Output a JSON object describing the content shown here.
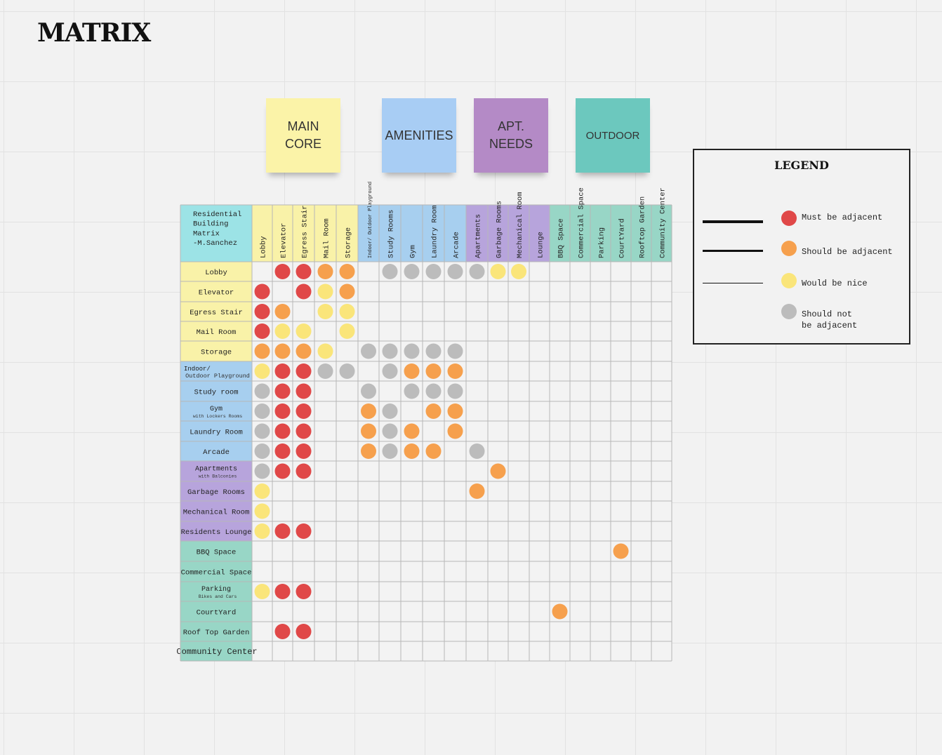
{
  "title": "MATRIX",
  "categories": [
    {
      "label": "MAIN\nCORE",
      "color": "#fbf3a8"
    },
    {
      "label": "AMENITIES",
      "color": "#a8cdf4"
    },
    {
      "label": "APT.\nNEEDS",
      "color": "#b48ac6"
    },
    {
      "label": "OUTDOOR",
      "color": "#6cc8be"
    }
  ],
  "matrix": {
    "corner_label": [
      "Residential",
      "Building",
      "Matrix",
      "-M.Sanchez"
    ],
    "group_colors": {
      "core": "#f9f2a8",
      "amenities": "#a7cfef",
      "apt": "#b7a4dc",
      "outdoor": "#98d6c6",
      "corner": "#9ce3e6"
    },
    "columns": [
      {
        "label": "Lobby",
        "group": "core"
      },
      {
        "label": "Elevator",
        "group": "core"
      },
      {
        "label": "Egress Stair",
        "group": "core"
      },
      {
        "label": "Mail Room",
        "group": "core"
      },
      {
        "label": "Storage",
        "group": "core"
      },
      {
        "label": "Indoor/ Outdoor Playground",
        "group": "amenities",
        "tiny": true
      },
      {
        "label": "Study Rooms",
        "group": "amenities"
      },
      {
        "label": "Gym",
        "group": "amenities"
      },
      {
        "label": "Laundry Room",
        "group": "amenities"
      },
      {
        "label": "Arcade",
        "group": "amenities"
      },
      {
        "label": "Apartments",
        "group": "apt"
      },
      {
        "label": "Garbage Rooms",
        "group": "apt"
      },
      {
        "label": "Mechanical Room",
        "group": "apt"
      },
      {
        "label": "Lounge",
        "group": "apt"
      },
      {
        "label": "BBQ Space",
        "group": "outdoor"
      },
      {
        "label": "Commercial Space",
        "group": "outdoor"
      },
      {
        "label": "Parking",
        "group": "outdoor"
      },
      {
        "label": "CourtYard",
        "group": "outdoor"
      },
      {
        "label": "Rooftop Garden",
        "group": "outdoor"
      },
      {
        "label": "Community Center",
        "group": "outdoor"
      }
    ],
    "rows": [
      {
        "label": "Lobby",
        "group": "core",
        "cells": [
          "",
          "R",
          "R",
          "O",
          "O",
          "",
          "G",
          "G",
          "G",
          "G",
          "G",
          "Y",
          "Y",
          "",
          "",
          "",
          "",
          "",
          "",
          ""
        ]
      },
      {
        "label": "Elevator",
        "group": "core",
        "cells": [
          "R",
          "",
          "R",
          "Y",
          "O",
          "",
          "",
          "",
          "",
          "",
          "",
          "",
          "",
          "",
          "",
          "",
          "",
          "",
          "",
          ""
        ]
      },
      {
        "label": "Egress Stair",
        "group": "core",
        "cells": [
          "R",
          "O",
          "",
          "Y",
          "Y",
          "",
          "",
          "",
          "",
          "",
          "",
          "",
          "",
          "",
          "",
          "",
          "",
          "",
          "",
          ""
        ]
      },
      {
        "label": "Mail Room",
        "group": "core",
        "cells": [
          "R",
          "Y",
          "Y",
          "",
          "Y",
          "",
          "",
          "",
          "",
          "",
          "",
          "",
          "",
          "",
          "",
          "",
          "",
          "",
          "",
          ""
        ]
      },
      {
        "label": "Storage",
        "group": "core",
        "cells": [
          "O",
          "O",
          "O",
          "Y",
          "",
          "G",
          "G",
          "G",
          "G",
          "G",
          "",
          "",
          "",
          "",
          "",
          "",
          "",
          "",
          "",
          ""
        ]
      },
      {
        "label": "Indoor/",
        "sub": "Outdoor Playground",
        "group": "amenities",
        "cells": [
          "Y",
          "R",
          "R",
          "G",
          "G",
          "",
          "G",
          "O",
          "O",
          "O",
          "",
          "",
          "",
          "",
          "",
          "",
          "",
          "",
          "",
          ""
        ]
      },
      {
        "label": "Study room",
        "group": "amenities",
        "cells": [
          "G",
          "R",
          "R",
          "",
          "",
          "G",
          "",
          "G",
          "G",
          "G",
          "",
          "",
          "",
          "",
          "",
          "",
          "",
          "",
          "",
          ""
        ]
      },
      {
        "label": "Gym",
        "sub": "with Lockers Rooms",
        "group": "amenities",
        "cells": [
          "G",
          "R",
          "R",
          "",
          "",
          "O",
          "G",
          "",
          "O",
          "O",
          "",
          "",
          "",
          "",
          "",
          "",
          "",
          "",
          "",
          ""
        ]
      },
      {
        "label": "Laundry Room",
        "group": "amenities",
        "cells": [
          "G",
          "R",
          "R",
          "",
          "",
          "O",
          "G",
          "O",
          "",
          "O",
          "",
          "",
          "",
          "",
          "",
          "",
          "",
          "",
          "",
          ""
        ]
      },
      {
        "label": "Arcade",
        "group": "amenities",
        "cells": [
          "G",
          "R",
          "R",
          "",
          "",
          "O",
          "G",
          "O",
          "O",
          "",
          "G",
          "",
          "",
          "",
          "",
          "",
          "",
          "",
          "",
          ""
        ]
      },
      {
        "label": "Apartments",
        "sub": "with Balconies",
        "group": "apt",
        "cells": [
          "G",
          "R",
          "R",
          "",
          "",
          "",
          "",
          "",
          "",
          "",
          "",
          "O",
          "",
          "",
          "",
          "",
          "",
          "",
          "",
          ""
        ]
      },
      {
        "label": "Garbage Rooms",
        "group": "apt",
        "cells": [
          "Y",
          "",
          "",
          "",
          "",
          "",
          "",
          "",
          "",
          "",
          "O",
          "",
          "",
          "",
          "",
          "",
          "",
          "",
          "",
          ""
        ]
      },
      {
        "label": "Mechanical Room",
        "group": "apt",
        "cells": [
          "Y",
          "",
          "",
          "",
          "",
          "",
          "",
          "",
          "",
          "",
          "",
          "",
          "",
          "",
          "",
          "",
          "",
          "",
          "",
          ""
        ]
      },
      {
        "label": "Residents Lounge",
        "group": "apt",
        "cells": [
          "Y",
          "R",
          "R",
          "",
          "",
          "",
          "",
          "",
          "",
          "",
          "",
          "",
          "",
          "",
          "",
          "",
          "",
          "",
          "",
          ""
        ]
      },
      {
        "label": "BBQ Space",
        "group": "outdoor",
        "cells": [
          "",
          "",
          "",
          "",
          "",
          "",
          "",
          "",
          "",
          "",
          "",
          "",
          "",
          "",
          "",
          "",
          "",
          "O",
          "",
          ""
        ]
      },
      {
        "label": "Commercial Space",
        "group": "outdoor",
        "cells": [
          "",
          "",
          "",
          "",
          "",
          "",
          "",
          "",
          "",
          "",
          "",
          "",
          "",
          "",
          "",
          "",
          "",
          "",
          "",
          ""
        ]
      },
      {
        "label": "Parking",
        "sub": "Bikes and Cars",
        "group": "outdoor",
        "cells": [
          "Y",
          "R",
          "R",
          "",
          "",
          "",
          "",
          "",
          "",
          "",
          "",
          "",
          "",
          "",
          "",
          "",
          "",
          "",
          "",
          ""
        ]
      },
      {
        "label": "CourtYard",
        "group": "outdoor",
        "cells": [
          "",
          "",
          "",
          "",
          "",
          "",
          "",
          "",
          "",
          "",
          "",
          "",
          "",
          "",
          "O",
          "",
          "",
          "",
          "",
          ""
        ]
      },
      {
        "label": "Roof Top Garden",
        "group": "outdoor",
        "cells": [
          "",
          "R",
          "R",
          "",
          "",
          "",
          "",
          "",
          "",
          "",
          "",
          "",
          "",
          "",
          "",
          "",
          "",
          "",
          "",
          ""
        ]
      },
      {
        "label": "Community Center",
        "group": "outdoor",
        "cells": [
          "",
          "",
          "",
          "",
          "",
          "",
          "",
          "",
          "",
          "",
          "",
          "",
          "",
          "",
          "",
          "",
          "",
          "",
          "",
          ""
        ]
      }
    ]
  },
  "dot_colors": {
    "R": "#e04848",
    "O": "#f6a04d",
    "Y": "#fae57a",
    "G": "#bcbcbc"
  },
  "legend": {
    "title": "LEGEND",
    "items": [
      {
        "key": "R",
        "text": "Must be adjacent",
        "line_weight": "thick"
      },
      {
        "key": "O",
        "text": "Should be adjacent",
        "line_weight": "medium"
      },
      {
        "key": "Y",
        "text": "Would be nice",
        "line_weight": "thin"
      },
      {
        "key": "G",
        "text": "Should not\nbe adjacent",
        "line_weight": "none"
      }
    ]
  }
}
